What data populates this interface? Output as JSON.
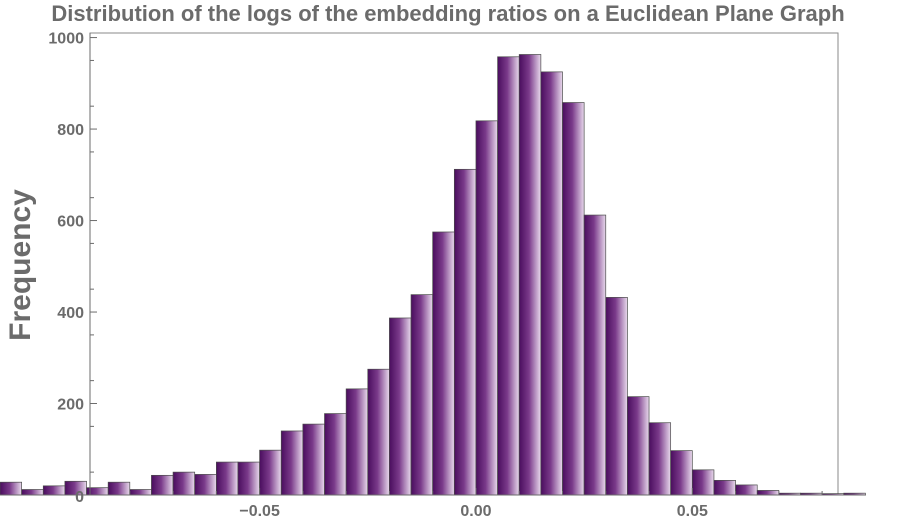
{
  "chart_data": {
    "type": "bar",
    "title": "Distribution of the logs of the embedding ratios on a Euclidean Plane Graph",
    "xlabel": "",
    "ylabel": "Frequency",
    "bin_width": 0.005,
    "x_range": [
      -0.11,
      0.098
    ],
    "ylim": [
      0,
      1010
    ],
    "y_ticks": [
      0,
      200,
      400,
      600,
      800,
      1000
    ],
    "x_ticks": [
      -0.05,
      0.0,
      0.05
    ],
    "x_tick_labels": [
      "−0.05",
      "0.00",
      "0.05"
    ],
    "bin_starts": [
      -0.11,
      -0.105,
      -0.1,
      -0.095,
      -0.09,
      -0.085,
      -0.08,
      -0.075,
      -0.07,
      -0.065,
      -0.06,
      -0.055,
      -0.05,
      -0.045,
      -0.04,
      -0.035,
      -0.03,
      -0.025,
      -0.02,
      -0.015,
      -0.01,
      -0.005,
      0.0,
      0.005,
      0.01,
      0.015,
      0.02,
      0.025,
      0.03,
      0.035,
      0.04,
      0.045,
      0.05,
      0.055,
      0.06,
      0.065,
      0.07,
      0.075,
      0.08,
      0.085
    ],
    "values": [
      28,
      12,
      20,
      30,
      16,
      28,
      12,
      43,
      50,
      45,
      72,
      72,
      98,
      140,
      155,
      178,
      232,
      275,
      387,
      438,
      575,
      712,
      818,
      958,
      963,
      925,
      858,
      612,
      432,
      215,
      158,
      97,
      55,
      32,
      22,
      10,
      4,
      4,
      3,
      4
    ],
    "bar_gradient": [
      "#4a0d5e",
      "#7a3a8a",
      "#e8d9ec"
    ]
  }
}
